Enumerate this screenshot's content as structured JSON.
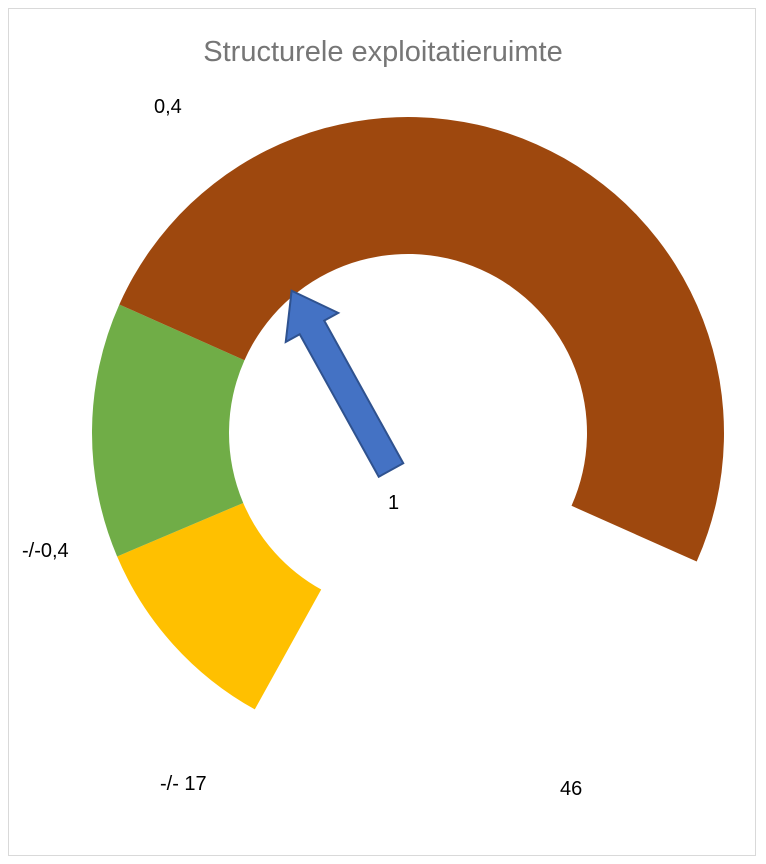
{
  "chart_data": {
    "type": "gauge",
    "title": "Structurele exploitatieruimte",
    "value_label": "1",
    "segments": [
      {
        "label": "-/- 17",
        "color": "#FFC000",
        "sweep_deg": 38
      },
      {
        "label": "-/-0,4",
        "color": "#70AD47",
        "sweep_deg": 47
      },
      {
        "label": "0,4",
        "color": "#9E480E",
        "sweep_deg": 180
      }
    ],
    "end_label": "46",
    "gap_deg": 58,
    "needle_color": "#4472C4",
    "needle_angle_deg": 331
  }
}
